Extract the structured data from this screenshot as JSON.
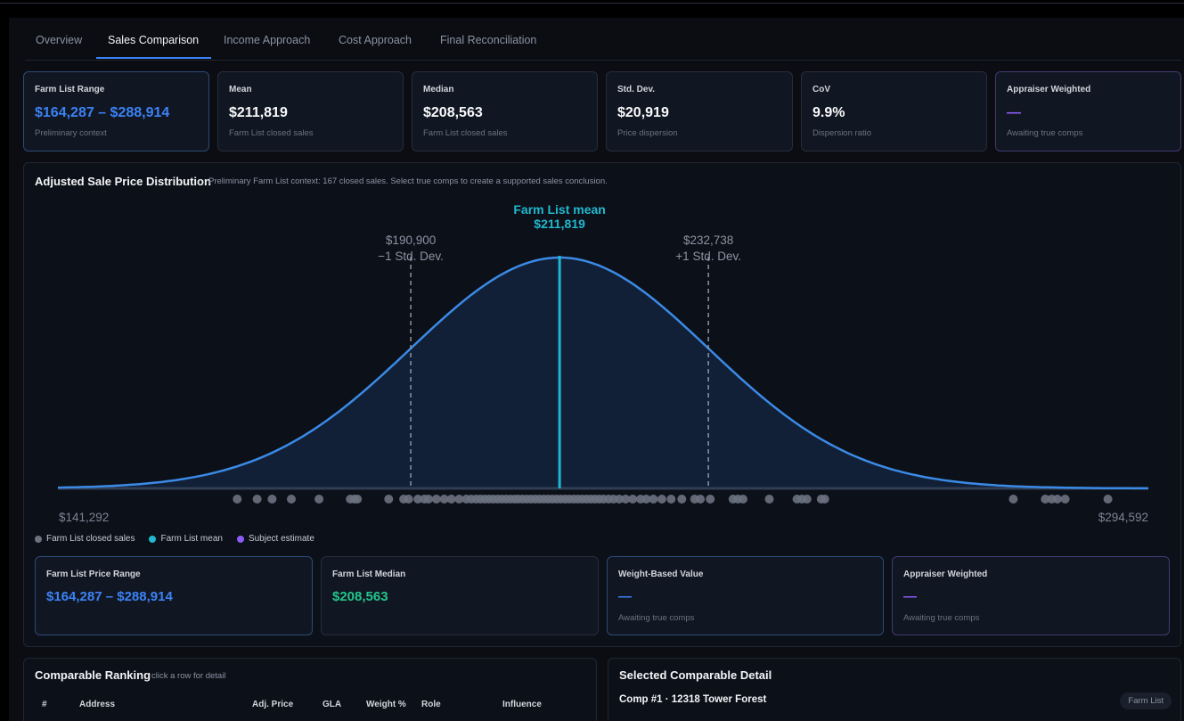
{
  "tabs": [
    "Overview",
    "Sales Comparison",
    "Income Approach",
    "Cost Approach",
    "Final Reconciliation"
  ],
  "active_tab": "Sales Comparison",
  "stats": [
    {
      "label": "Farm List Range",
      "value": "$164,287 – $288,914",
      "sub": "Preliminary context"
    },
    {
      "label": "Mean",
      "value": "$211,819",
      "sub": "Farm List closed sales"
    },
    {
      "label": "Median",
      "value": "$208,563",
      "sub": "Farm List closed sales"
    },
    {
      "label": "Std. Dev.",
      "value": "$20,919",
      "sub": "Price dispersion"
    },
    {
      "label": "CoV",
      "value": "9.9%",
      "sub": "Dispersion ratio"
    },
    {
      "label": "Appraiser Weighted",
      "value": "—",
      "sub": "Awaiting true comps"
    }
  ],
  "distribution": {
    "title": "Adjusted Sale Price Distribution",
    "subtitle": "Preliminary Farm List context: 167 closed sales. Select true comps to create a supported sales conclusion.",
    "mean_label": "Farm List mean",
    "mean_value": "$211,819",
    "minus_sd_value": "$190,900",
    "minus_sd_label": "−1 Std. Dev.",
    "plus_sd_value": "$232,738",
    "plus_sd_label": "+1 Std. Dev.",
    "axis_min_label": "$141,292",
    "axis_max_label": "$294,592",
    "legend": [
      {
        "label": "Farm List closed sales",
        "color": "#6b7280"
      },
      {
        "label": "Farm List mean",
        "color": "#22b8cf"
      },
      {
        "label": "Subject estimate",
        "color": "#8b5cf6"
      }
    ]
  },
  "chart_data": {
    "type": "area",
    "title": "Adjusted Sale Price Distribution",
    "x_range": [
      141292,
      294592
    ],
    "mean": 211819,
    "std_dev": 20919,
    "minus_1sd": 190900,
    "plus_1sd": 232738,
    "sales_count": 167,
    "sales_prices": [
      166500,
      169300,
      171400,
      174100,
      178000,
      182400,
      183000,
      183400,
      187800,
      189900,
      190600,
      191900,
      192800,
      193400,
      194500,
      195600,
      196600,
      197700,
      198700,
      199400,
      200100,
      200700,
      201300,
      201900,
      202500,
      203100,
      203700,
      204300,
      204900,
      205500,
      206000,
      206600,
      207200,
      207800,
      208400,
      209000,
      209600,
      210200,
      210800,
      211400,
      212000,
      212600,
      213200,
      213800,
      214400,
      215000,
      215600,
      216200,
      216800,
      217400,
      218000,
      218700,
      219400,
      220200,
      221100,
      222100,
      223200,
      224000,
      225000,
      226200,
      227500,
      229000,
      230800,
      231600,
      233000,
      236200,
      236900,
      237600,
      241300,
      245200,
      245900,
      246600,
      248600,
      249100,
      275600,
      280100,
      281000,
      281800,
      282900,
      288900
    ]
  },
  "summary_cards": [
    {
      "label": "Farm List Price Range",
      "value": "$164,287 – $288,914",
      "sub": ""
    },
    {
      "label": "Farm List Median",
      "value": "$208,563",
      "sub": ""
    },
    {
      "label": "Weight-Based Value",
      "value": "—",
      "sub": "Awaiting true comps"
    },
    {
      "label": "Appraiser Weighted",
      "value": "—",
      "sub": "Awaiting true comps"
    }
  ],
  "ranking": {
    "title": "Comparable Ranking",
    "hint": "click a row for detail",
    "columns": [
      "#",
      "Address",
      "Adj. Price",
      "GLA",
      "Weight %",
      "Role",
      "Influence"
    ]
  },
  "detail": {
    "title": "Selected Comparable Detail",
    "comp": "Comp #1 · 12318 Tower Forest",
    "chip": "Farm List"
  }
}
